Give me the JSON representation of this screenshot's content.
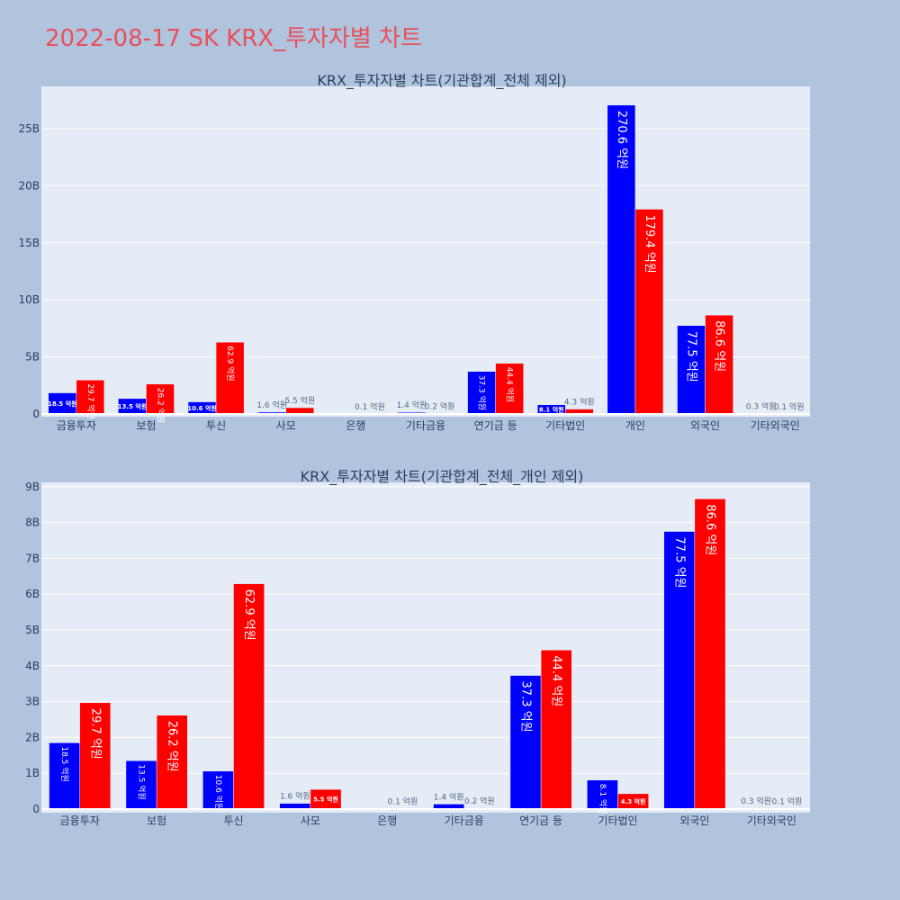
{
  "title": "2022-08-17 SK KRX_투자자별 차트",
  "chart_data": [
    {
      "type": "bar",
      "title": "KRX_투자자별 차트(기관합계_전체 제외)",
      "categories": [
        "금융투자",
        "보험",
        "투신",
        "사모",
        "은행",
        "기타금융",
        "연기금 등",
        "기타법인",
        "개인",
        "외국인",
        "기타외국인"
      ],
      "yticks": [
        {
          "value": 0,
          "label": "0"
        },
        {
          "value": 5000000000,
          "label": "5B"
        },
        {
          "value": 10000000000,
          "label": "10B"
        },
        {
          "value": 15000000000,
          "label": "15B"
        },
        {
          "value": 20000000000,
          "label": "20B"
        },
        {
          "value": 25000000000,
          "label": "25B"
        }
      ],
      "ylim": [
        0,
        28700000000
      ],
      "grid": true,
      "series": [
        {
          "color": "#0000ff",
          "values": [
            1850000000,
            1350000000,
            1060000000,
            160000000,
            0,
            140000000,
            3730000000,
            810000000,
            27060000000,
            7750000000,
            30000000
          ],
          "labels": [
            "18.5 억원",
            "13.5 억원",
            "10.6 억원",
            "1.6 억원",
            "",
            "1.4 억원",
            "37.3 억원",
            "8.1 억원",
            "270.6 억원",
            "77.5 억원",
            "0.3 억원"
          ]
        },
        {
          "color": "#ff0000",
          "values": [
            2970000000,
            2620000000,
            6290000000,
            550000000,
            10000000,
            20000000,
            4440000000,
            430000000,
            17940000000,
            8660000000,
            10000000
          ],
          "labels": [
            "29.7 억원",
            "26.2 억원",
            "62.9 억원",
            "5.5 억원",
            "0.1 억원",
            "0.2 억원",
            "44.4 억원",
            "4.3 억원",
            "179.4 억원",
            "86.6 억원",
            "0.1 억원"
          ]
        }
      ]
    },
    {
      "type": "bar",
      "title": "KRX_투자자별 차트(기관합계_전체_개인 제외)",
      "categories": [
        "금융투자",
        "보험",
        "투신",
        "사모",
        "은행",
        "기타금융",
        "연기금 등",
        "기타법인",
        "외국인",
        "기타외국인"
      ],
      "yticks": [
        {
          "value": 0,
          "label": "0"
        },
        {
          "value": 1000000000,
          "label": "1B"
        },
        {
          "value": 2000000000,
          "label": "2B"
        },
        {
          "value": 3000000000,
          "label": "3B"
        },
        {
          "value": 4000000000,
          "label": "4B"
        },
        {
          "value": 5000000000,
          "label": "5B"
        },
        {
          "value": 6000000000,
          "label": "6B"
        },
        {
          "value": 7000000000,
          "label": "7B"
        },
        {
          "value": 8000000000,
          "label": "8B"
        },
        {
          "value": 9000000000,
          "label": "9B"
        }
      ],
      "ylim": [
        0,
        9120000000
      ],
      "grid": true,
      "series": [
        {
          "color": "#0000ff",
          "values": [
            1850000000,
            1350000000,
            1060000000,
            160000000,
            0,
            140000000,
            3730000000,
            810000000,
            7750000000,
            30000000
          ],
          "labels": [
            "18.5 억원",
            "13.5 억원",
            "10.6 억원",
            "1.6 억원",
            "",
            "1.4 억원",
            "37.3 억원",
            "8.1 억원",
            "77.5 억원",
            "0.3 억원"
          ]
        },
        {
          "color": "#ff0000",
          "values": [
            2970000000,
            2620000000,
            6290000000,
            550000000,
            10000000,
            20000000,
            4440000000,
            430000000,
            8660000000,
            10000000
          ],
          "labels": [
            "29.7 억원",
            "26.2 억원",
            "62.9 억원",
            "5.5 억원",
            "0.1 억원",
            "0.2 억원",
            "44.4 억원",
            "4.3 억원",
            "86.6 억원",
            "0.1 억원"
          ]
        }
      ]
    }
  ]
}
